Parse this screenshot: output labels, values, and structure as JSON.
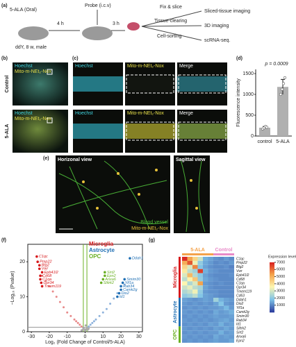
{
  "panel_a": {
    "label": "(a)",
    "drug": "5-ALA (Oral)",
    "wait1": "4 h",
    "probe": "Probe (i.c.v)",
    "wait2": "3 h",
    "mouse": "ddY, 8 w, male",
    "steps": [
      "Fix & slice",
      "Tissue-clearing",
      "Cell-sorting"
    ],
    "outputs": [
      "Sliced-tissue imaging",
      "3D imaging",
      "scRNA-seq."
    ]
  },
  "panel_b": {
    "label": "(b)",
    "rows": [
      "Control",
      "5-ALA"
    ],
    "stains": [
      "Hoechst",
      "Mito-m-NEt₂-Nox"
    ]
  },
  "panel_c": {
    "label": "(c)",
    "columns": [
      "Hoechst",
      "Mito-m-NEt₂-Nox",
      "Merge"
    ]
  },
  "panel_d": {
    "label": "(d)"
  },
  "panel_e": {
    "label": "(e)",
    "views": [
      "Horizonal view",
      "Sagittal view"
    ],
    "legend": [
      "Blood vessel",
      "Mito-m-NEt₂-Nox"
    ]
  },
  "panel_f": {
    "label": "(f)"
  },
  "panel_g": {
    "label": "(g)"
  },
  "chart_data": [
    {
      "type": "bar",
      "annotation": "p = 0.0009",
      "ylabel": "Fluorescence intensity",
      "categories": [
        "control",
        "5-ALA"
      ],
      "values": [
        200,
        1180
      ],
      "errors": [
        30,
        180
      ],
      "points": [
        [
          170,
          195,
          230,
          210
        ],
        [
          1000,
          1120,
          1260,
          1400
        ]
      ],
      "color": "#b0b0b0",
      "ylim": [
        0,
        1600
      ],
      "yticks": [
        0,
        500,
        1000,
        1500
      ]
    },
    {
      "type": "scatter",
      "xlabel": "Log₂ (Fold Change of Control/5-ALA)",
      "ylabel": "−Log₁₀ (Pvalue)",
      "xlim": [
        -32,
        32
      ],
      "ylim": [
        0,
        25
      ],
      "xticks": [
        -30,
        -20,
        -10,
        0,
        10,
        20,
        30
      ],
      "yticks": [
        0,
        10,
        20
      ],
      "thresholds": {
        "x": [
          -1,
          1
        ],
        "y": 1.3
      },
      "legend": [
        {
          "name": "Microglia",
          "color": "#d7191c"
        },
        {
          "name": "Astrocyte",
          "color": "#1f6fb4"
        },
        {
          "name": "OPC",
          "color": "#6ab023"
        }
      ],
      "series": [
        {
          "color": "#e88a8a",
          "x": [
            -24,
            -22,
            -20,
            -18,
            -16,
            -14,
            -12,
            -10,
            -8,
            -6,
            -5,
            -4,
            -3,
            -2
          ],
          "y": [
            16,
            14.5,
            13,
            11.5,
            10,
            8.5,
            7,
            5.5,
            4.5,
            3.5,
            3,
            2.5,
            2,
            1.5
          ]
        },
        {
          "color": "#8fb3dc",
          "x": [
            2,
            3,
            4,
            5,
            6,
            8,
            10,
            12,
            14,
            16,
            18,
            20,
            22
          ],
          "y": [
            1.5,
            2,
            2.5,
            3,
            3.5,
            4.5,
            5.5,
            6.5,
            8,
            9.5,
            11,
            12,
            13.5
          ]
        },
        {
          "color": "#aaaaaa",
          "x": [
            -1.5,
            -1,
            -0.5,
            0,
            0.5,
            1,
            1.5,
            -2,
            2,
            0.3
          ],
          "y": [
            0.5,
            1,
            0.8,
            0.3,
            0.7,
            1.2,
            0.6,
            0.4,
            0.9,
            1.8
          ]
        }
      ],
      "genes": [
        {
          "name": "C1qc",
          "color": "#d7191c",
          "x": -27,
          "y": 21.5
        },
        {
          "name": "Pmp22",
          "color": "#d7191c",
          "x": -26.5,
          "y": 20
        },
        {
          "name": "Btg2",
          "color": "#d7191c",
          "x": -25.5,
          "y": 19
        },
        {
          "name": "Vwr",
          "color": "#d7191c",
          "x": -25.5,
          "y": 18
        },
        {
          "name": "Epb41l2",
          "color": "#d7191c",
          "x": -24,
          "y": 17
        },
        {
          "name": "Cd68",
          "color": "#d7191c",
          "x": -25,
          "y": 16
        },
        {
          "name": "C1qa",
          "color": "#d7191c",
          "x": -25,
          "y": 15
        },
        {
          "name": "Gpr34",
          "color": "#d7191c",
          "x": -24.5,
          "y": 14
        },
        {
          "name": "Tmem119",
          "color": "#d7191c",
          "x": -24,
          "y": 13
        },
        {
          "name": "Ddah1",
          "color": "#1f6fb4",
          "x": 25,
          "y": 21
        },
        {
          "name": "Sirt2",
          "color": "#6ab023",
          "x": 11,
          "y": 17
        },
        {
          "name": "Epn2",
          "color": "#6ab023",
          "x": 11,
          "y": 16
        },
        {
          "name": "Anxa6",
          "color": "#6ab023",
          "x": 10,
          "y": 15
        },
        {
          "name": "Slitrk2",
          "color": "#6ab023",
          "x": 9,
          "y": 14
        },
        {
          "name": "Smim30",
          "color": "#1f6fb4",
          "x": 22,
          "y": 15
        },
        {
          "name": "Yif1a",
          "color": "#1f6fb4",
          "x": 21,
          "y": 14
        },
        {
          "name": "Rab34",
          "color": "#1f6fb4",
          "x": 20,
          "y": 13
        },
        {
          "name": "Camk2g",
          "color": "#1f6fb4",
          "x": 20,
          "y": 12
        },
        {
          "name": "Dio2",
          "color": "#1f6fb4",
          "x": 19,
          "y": 11
        },
        {
          "name": "Id1",
          "color": "#1f6fb4",
          "x": 18,
          "y": 10
        }
      ]
    },
    {
      "type": "heatmap",
      "colorbar_title": "Expression level",
      "zlim": [
        0,
        7000
      ],
      "zticks": [
        1000,
        2000,
        3000,
        4000,
        5000,
        6000,
        7000
      ],
      "colors": [
        "#2c3e9e",
        "#7fc4e8",
        "#fdf6b0",
        "#f4a24a",
        "#d7191c"
      ],
      "column_groups": [
        {
          "name": "5-ALA",
          "color": "#f4a24a",
          "count": 6
        },
        {
          "name": "Control",
          "color": "#e88ac8",
          "count": 4
        }
      ],
      "row_groups": [
        {
          "name": "Microglia",
          "color": "#d7191c",
          "count": 10
        },
        {
          "name": "Astrocyte",
          "color": "#1f6fb4",
          "count": 7
        },
        {
          "name": "OPC",
          "color": "#6ab023",
          "count": 4
        }
      ],
      "rows": [
        "C1qc",
        "Pmp22",
        "Btg2",
        "Vwr",
        "Epb41l2",
        "Cd68",
        "C1qa",
        "Gpr34",
        "Tmem119",
        "Cd63",
        "Ddah1",
        "Dio2",
        "Yif1a",
        "Camk2g",
        "Smim30",
        "Rab34",
        "Id1",
        "Slitrk2",
        "Sirt2",
        "Anxa6",
        "Epn2"
      ],
      "values": [
        [
          6800,
          5200,
          4200,
          2800,
          1500,
          1300,
          1100,
          1000,
          1200,
          1000
        ],
        [
          5000,
          6200,
          3300,
          2000,
          1400,
          1200,
          1000,
          1100,
          1000,
          1200
        ],
        [
          4200,
          3000,
          5600,
          1800,
          1300,
          1100,
          1000,
          1000,
          1100,
          900
        ],
        [
          3800,
          2600,
          2200,
          6500,
          1500,
          1200,
          1100,
          1000,
          1000,
          1000
        ],
        [
          3000,
          4800,
          2500,
          1900,
          1300,
          1100,
          1000,
          1000,
          1000,
          1100
        ],
        [
          2600,
          3600,
          4500,
          2000,
          1400,
          1200,
          1100,
          1000,
          1000,
          1000
        ],
        [
          3500,
          2400,
          3000,
          5200,
          1200,
          1100,
          1000,
          1100,
          1000,
          1000
        ],
        [
          2800,
          3200,
          2600,
          2300,
          1300,
          1100,
          1000,
          1000,
          1000,
          1000
        ],
        [
          2400,
          2700,
          3300,
          2000,
          1200,
          1100,
          1100,
          1000,
          1000,
          1000
        ],
        [
          2000,
          2200,
          2600,
          1800,
          1300,
          1200,
          1100,
          1000,
          1000,
          1000
        ],
        [
          1300,
          1200,
          1100,
          1200,
          1300,
          1200,
          2200,
          1500,
          1300,
          1200
        ],
        [
          1200,
          1100,
          1200,
          1100,
          1200,
          1100,
          1300,
          1800,
          1200,
          1100
        ],
        [
          1100,
          1200,
          1100,
          1200,
          1100,
          1200,
          1200,
          1300,
          1600,
          1200
        ],
        [
          1200,
          1100,
          1200,
          1100,
          1200,
          1100,
          1400,
          1200,
          1300,
          1500
        ],
        [
          1100,
          1200,
          1100,
          1200,
          1100,
          1200,
          1300,
          1200,
          1200,
          1300
        ],
        [
          1200,
          1100,
          1200,
          1100,
          1200,
          1100,
          1200,
          1300,
          1400,
          1200
        ],
        [
          1100,
          1200,
          1100,
          1200,
          1100,
          1300,
          1200,
          1500,
          1200,
          1300
        ],
        [
          1200,
          1100,
          1200,
          1100,
          1200,
          1100,
          1300,
          1200,
          1400,
          1200
        ],
        [
          1100,
          1200,
          1100,
          1200,
          1100,
          1200,
          1200,
          1500,
          1200,
          1300
        ],
        [
          1200,
          1100,
          1200,
          1100,
          1200,
          1100,
          1400,
          1200,
          1300,
          1200
        ],
        [
          1100,
          1200,
          1100,
          1200,
          1100,
          1200,
          1300,
          1200,
          1200,
          1400
        ]
      ]
    }
  ]
}
